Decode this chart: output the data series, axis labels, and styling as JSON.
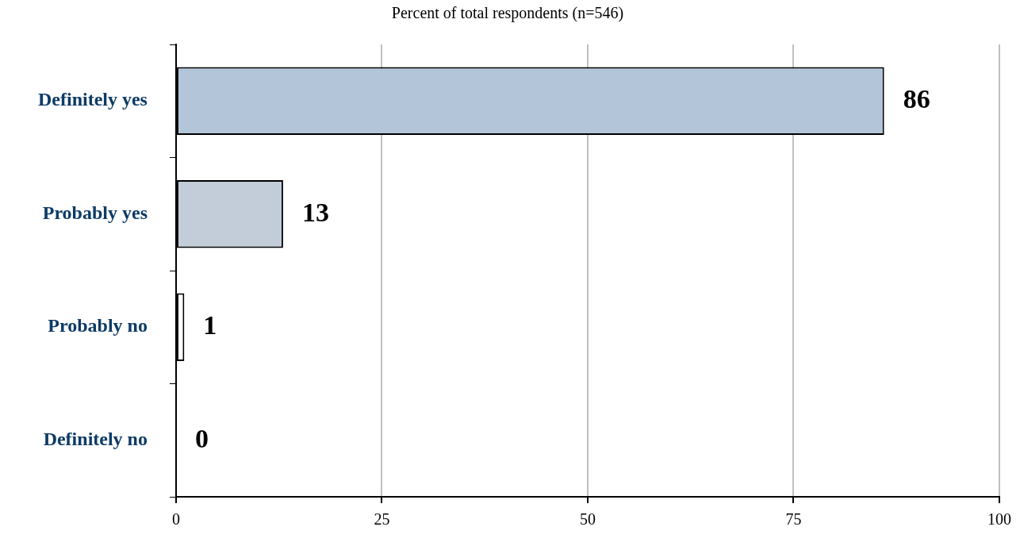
{
  "chart_data": {
    "type": "bar",
    "orientation": "horizontal",
    "subtitle": "Percent of total respondents (n=546)",
    "categories": [
      "Definitely yes",
      "Probably yes",
      "Probably no",
      "Definitely no"
    ],
    "values": [
      86,
      13,
      1,
      0
    ],
    "colors": [
      "#b3c5d9",
      "#c2cdd9",
      "#ffffff",
      "#ffffff"
    ],
    "xlim": [
      0,
      100
    ],
    "xticks": [
      0,
      25,
      50,
      75,
      100
    ],
    "grid": "x",
    "data_labels": true,
    "legend": false
  }
}
